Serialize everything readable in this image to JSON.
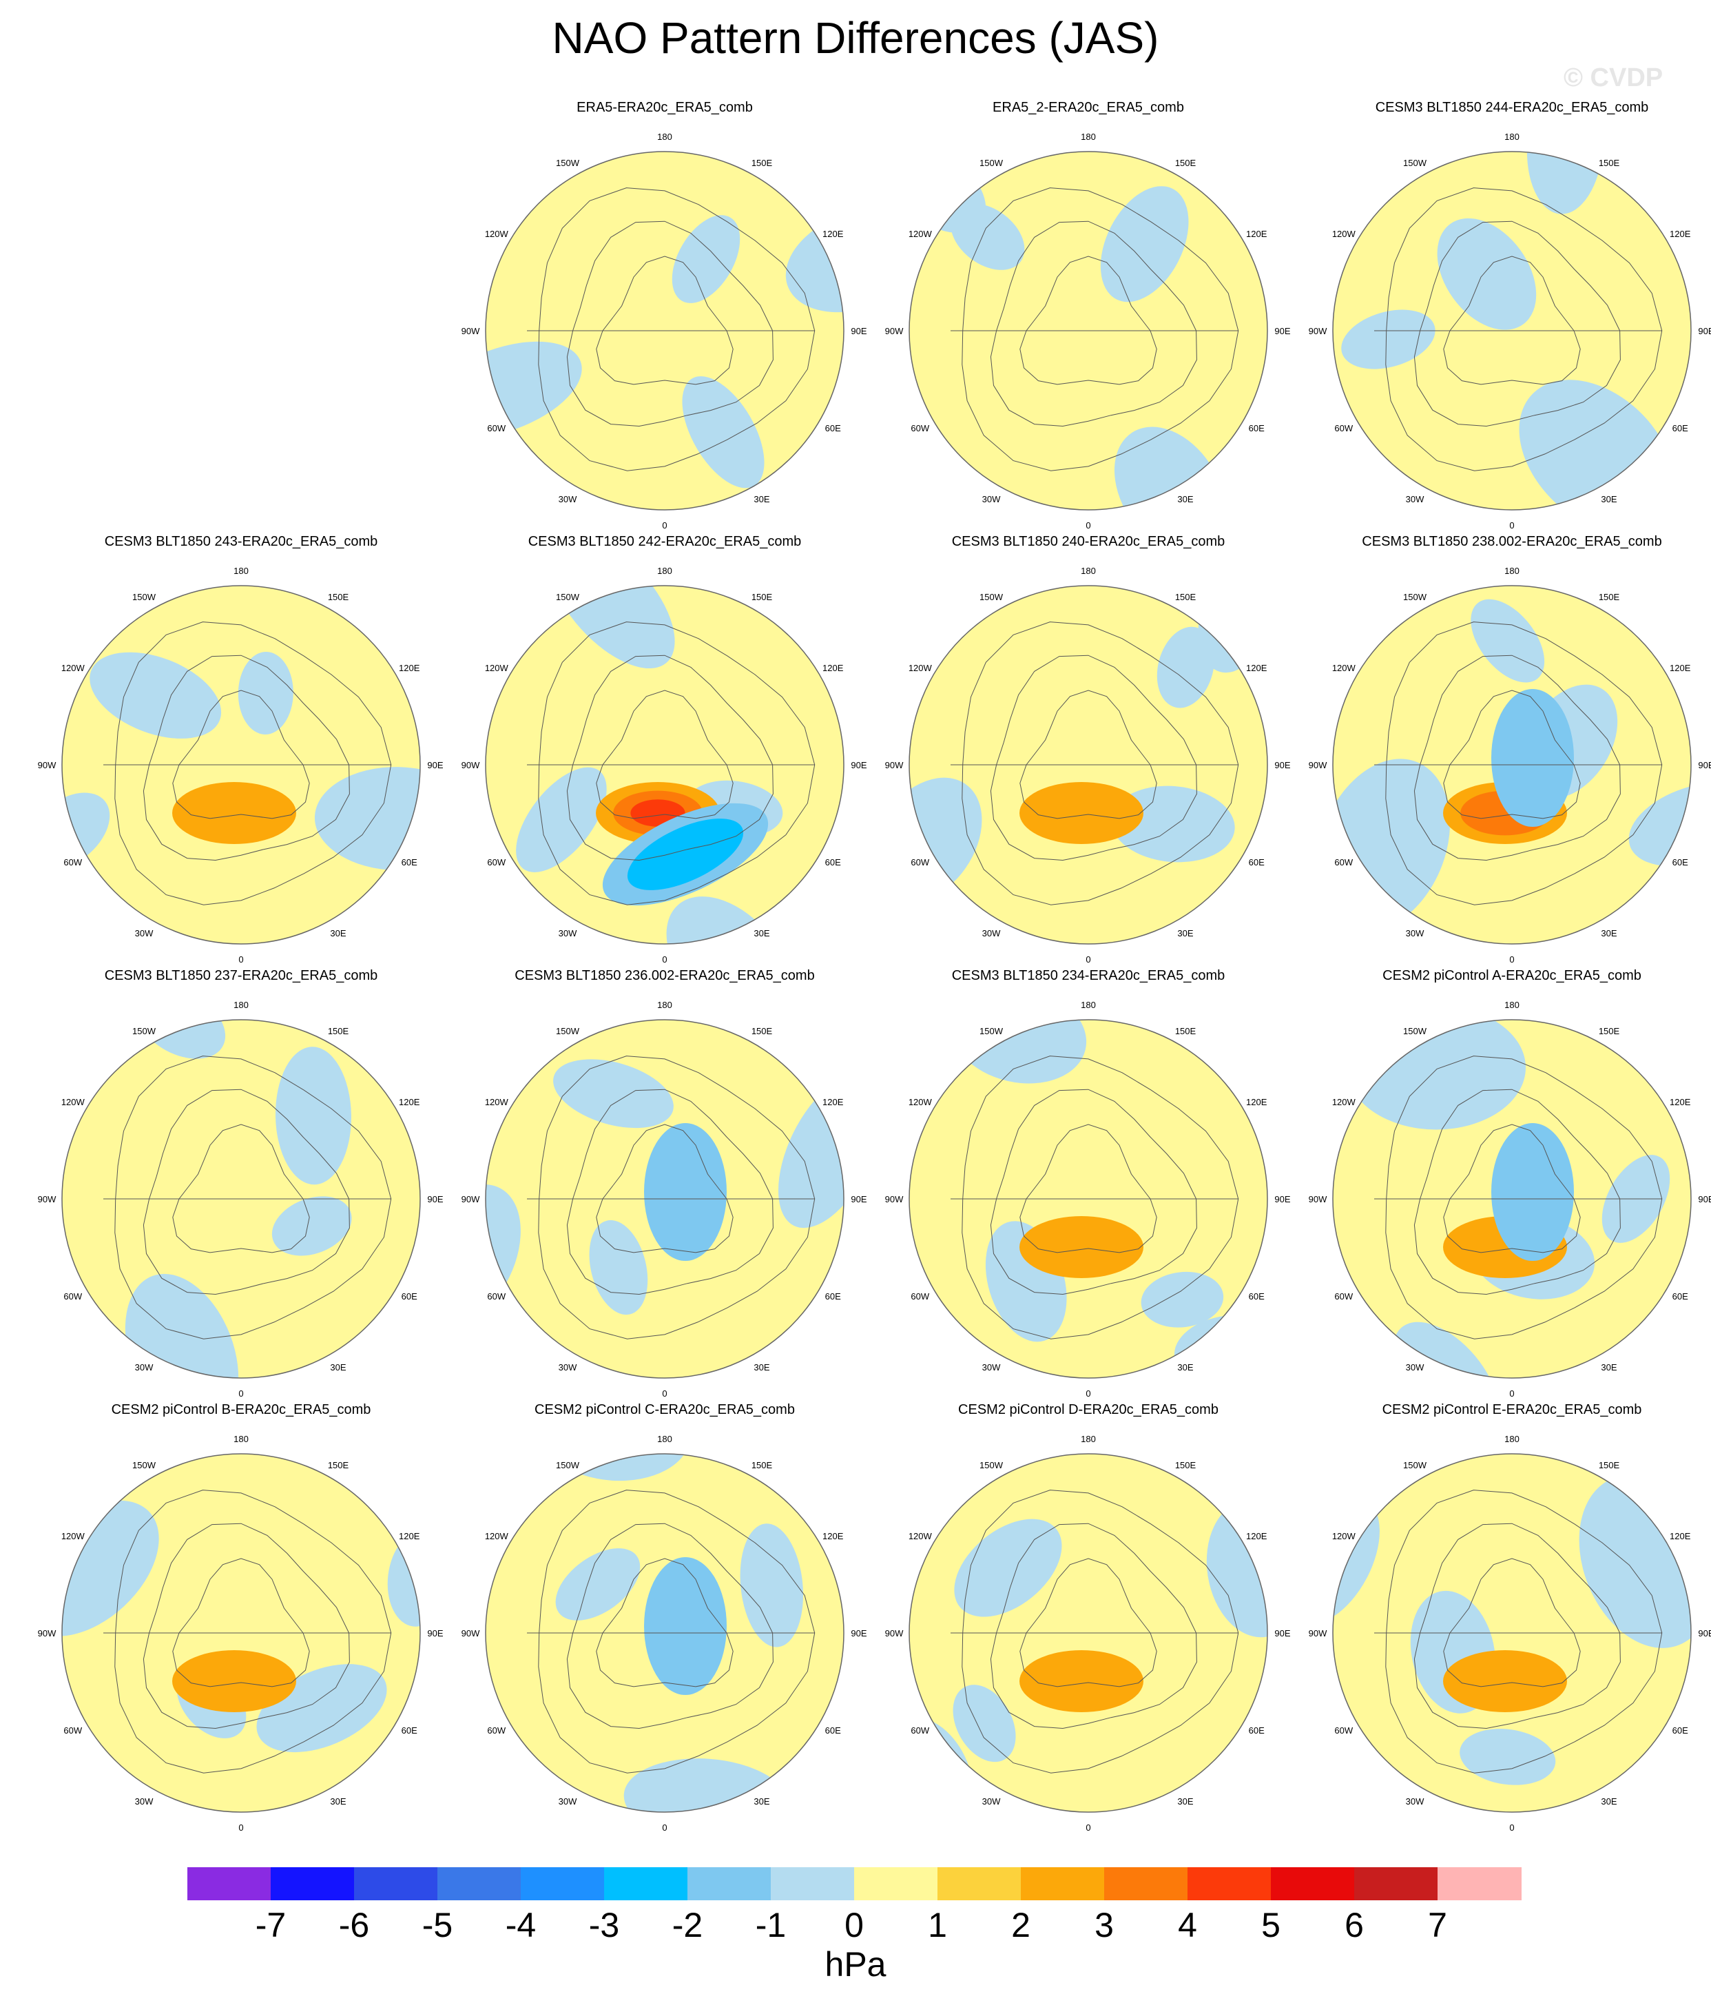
{
  "title": "NAO Pattern Differences (JAS)",
  "watermark": "© CVDP",
  "chart_data": {
    "type": "heatmap",
    "projection": "north polar stereographic",
    "title": "NAO Pattern Differences (JAS)",
    "longitude_labels": [
      "180",
      "150E",
      "120E",
      "90E",
      "60E",
      "30E",
      "0",
      "30W",
      "60W",
      "90W",
      "120W",
      "150W"
    ],
    "colorbar": {
      "units": "hPa",
      "ticks": [
        "-7",
        "-6",
        "-5",
        "-4",
        "-3",
        "-2",
        "-1",
        "0",
        "1",
        "2",
        "3",
        "4",
        "5",
        "6",
        "7"
      ],
      "colors": [
        "#8a2be2",
        "#1414ff",
        "#2d4be8",
        "#3a78e8",
        "#1e90ff",
        "#00bfff",
        "#7ec8f0",
        "#b4dcf0",
        "#fff99a",
        "#fcd23c",
        "#fca80a",
        "#fc7a0a",
        "#fc3a0a",
        "#e80a0a",
        "#c81e1e",
        "#ffb4b4"
      ]
    },
    "panels": [
      {
        "title": "ERA5-ERA20c_ERA5_comb",
        "max_positive": 1,
        "min_negative": -1
      },
      {
        "title": "ERA5_2-ERA20c_ERA5_comb",
        "max_positive": 1,
        "min_negative": -1
      },
      {
        "title": "CESM3 BLT1850 244-ERA20c_ERA5_comb",
        "max_positive": 1,
        "min_negative": -1
      },
      {
        "title": "CESM3 BLT1850 243-ERA20c_ERA5_comb",
        "max_positive": 2,
        "min_negative": -1
      },
      {
        "title": "CESM3 BLT1850 242-ERA20c_ERA5_comb",
        "max_positive": 4,
        "min_negative": -3
      },
      {
        "title": "CESM3 BLT1850 240-ERA20c_ERA5_comb",
        "max_positive": 2,
        "min_negative": -1
      },
      {
        "title": "CESM3 BLT1850 238.002-ERA20c_ERA5_comb",
        "max_positive": 3,
        "min_negative": -2
      },
      {
        "title": "CESM3 BLT1850 237-ERA20c_ERA5_comb",
        "max_positive": 1,
        "min_negative": -1
      },
      {
        "title": "CESM3 BLT1850 236.002-ERA20c_ERA5_comb",
        "max_positive": 1,
        "min_negative": -2
      },
      {
        "title": "CESM3 BLT1850 234-ERA20c_ERA5_comb",
        "max_positive": 2,
        "min_negative": -1
      },
      {
        "title": "CESM2 piControl A-ERA20c_ERA5_comb",
        "max_positive": 2,
        "min_negative": -2
      },
      {
        "title": "CESM2 piControl B-ERA20c_ERA5_comb",
        "max_positive": 2,
        "min_negative": -1
      },
      {
        "title": "CESM2 piControl C-ERA20c_ERA5_comb",
        "max_positive": 1,
        "min_negative": -2
      },
      {
        "title": "CESM2 piControl D-ERA20c_ERA5_comb",
        "max_positive": 2,
        "min_negative": -1
      },
      {
        "title": "CESM2 piControl E-ERA20c_ERA5_comb",
        "max_positive": 2,
        "min_negative": -1
      }
    ]
  }
}
